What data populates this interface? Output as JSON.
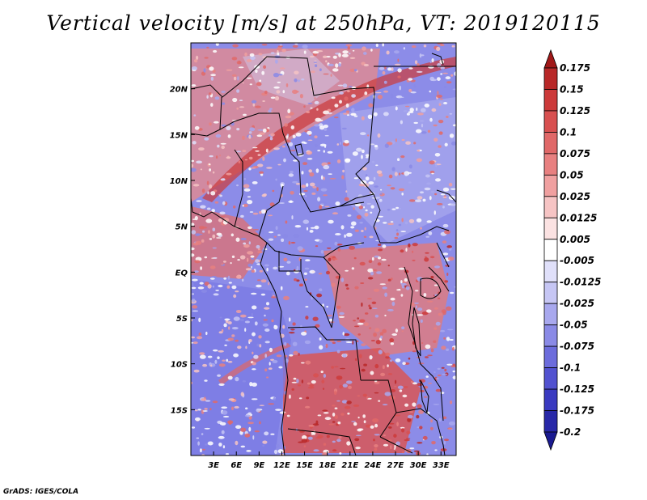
{
  "title": "Vertical velocity [m/s] at 250hPa, VT: 2019120115",
  "credit": "GrADS: IGES/COLA",
  "map": {
    "lon_range": [
      0,
      35
    ],
    "lat_range": [
      -20,
      25
    ],
    "lat_ticks": [
      {
        "value": 20,
        "label": "20N"
      },
      {
        "value": 15,
        "label": "15N"
      },
      {
        "value": 10,
        "label": "10N"
      },
      {
        "value": 5,
        "label": "5N"
      },
      {
        "value": 0,
        "label": "EQ"
      },
      {
        "value": -5,
        "label": "5S"
      },
      {
        "value": -10,
        "label": "10S"
      },
      {
        "value": -15,
        "label": "15S"
      }
    ],
    "lon_ticks": [
      {
        "value": 3,
        "label": "3E"
      },
      {
        "value": 6,
        "label": "6E"
      },
      {
        "value": 9,
        "label": "9E"
      },
      {
        "value": 12,
        "label": "12E"
      },
      {
        "value": 15,
        "label": "15E"
      },
      {
        "value": 18,
        "label": "18E"
      },
      {
        "value": 21,
        "label": "21E"
      },
      {
        "value": 24,
        "label": "24E"
      },
      {
        "value": 27,
        "label": "27E"
      },
      {
        "value": 30,
        "label": "30E"
      },
      {
        "value": 33,
        "label": "33E"
      }
    ]
  },
  "colorbar": {
    "labels": [
      "0.175",
      "0.15",
      "0.125",
      "0.1",
      "0.075",
      "0.05",
      "0.025",
      "0.0125",
      "0.005",
      "-0.005",
      "-0.0125",
      "-0.025",
      "-0.05",
      "-0.075",
      "-0.1",
      "-0.125",
      "-0.175",
      "-0.2"
    ],
    "colors": [
      "#a01818",
      "#b82828",
      "#cc3a3a",
      "#d85050",
      "#e06868",
      "#e88080",
      "#f0a0a0",
      "#f6c4c4",
      "#fbe2e2",
      "#ffffff",
      "#e0e0fa",
      "#c6c6f4",
      "#a8a8ee",
      "#8a8ae6",
      "#6c6cdc",
      "#5252d0",
      "#3a3ac0",
      "#2828a8",
      "#1a1a90"
    ]
  }
}
